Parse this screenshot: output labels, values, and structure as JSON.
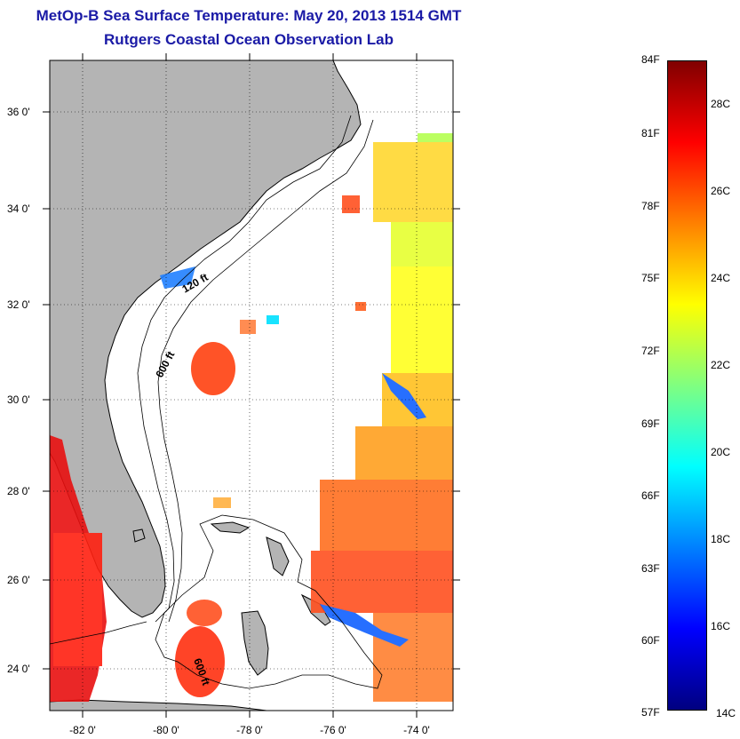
{
  "title": "MetOp-B Sea Surface Temperature:  May 20, 2013 1514 GMT",
  "subtitle": "Rutgers Coastal Ocean Observation Lab",
  "map": {
    "lat_ticks": [
      "36 0'",
      "34 0'",
      "32 0'",
      "30 0'",
      "28 0'",
      "26 0'",
      "24 0'"
    ],
    "lon_ticks": [
      "-82 0'",
      "-80 0'",
      "-78 0'",
      "-76 0'",
      "-74 0'"
    ],
    "contour_labels": [
      "120 ft",
      "600 ft",
      "600 ft"
    ],
    "land_color": "#b4b4b4",
    "ocean_color": "#ffffff"
  },
  "colorbar": {
    "fahrenheit_ticks": [
      "84F",
      "81F",
      "78F",
      "75F",
      "72F",
      "69F",
      "66F",
      "63F",
      "60F",
      "57F"
    ],
    "celsius_ticks": [
      "28C",
      "26C",
      "24C",
      "22C",
      "20C",
      "18C",
      "16C",
      "14C"
    ],
    "colors": [
      "#800000",
      "#ff0000",
      "#ff8000",
      "#ffff00",
      "#80ff80",
      "#00ffff",
      "#0080ff",
      "#0000ff",
      "#000080"
    ]
  }
}
